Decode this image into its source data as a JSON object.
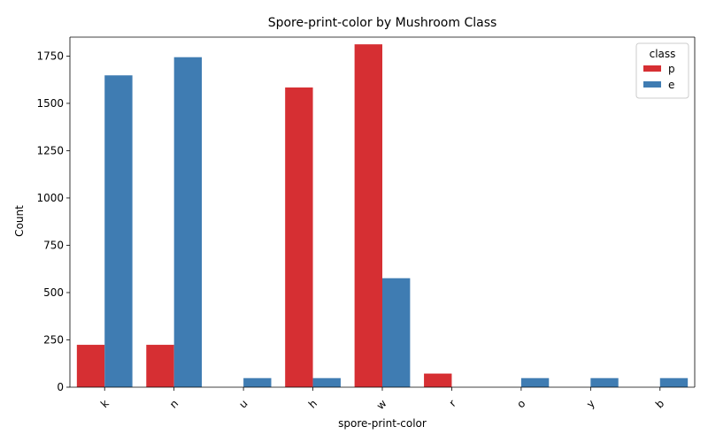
{
  "chart_data": {
    "type": "bar",
    "title": "Spore-print-color by Mushroom Class",
    "xlabel": "spore-print-color",
    "ylabel": "Count",
    "categories": [
      "k",
      "n",
      "u",
      "h",
      "w",
      "r",
      "o",
      "y",
      "b"
    ],
    "series": [
      {
        "name": "p",
        "color": "#d62f33",
        "values": [
          224,
          224,
          0,
          1584,
          1812,
          72,
          0,
          0,
          0
        ]
      },
      {
        "name": "e",
        "color": "#3f7cb2",
        "values": [
          1648,
          1744,
          48,
          48,
          576,
          0,
          48,
          48,
          48
        ]
      }
    ],
    "ylim": [
      0,
      1850
    ],
    "yticks": [
      0,
      250,
      500,
      750,
      1000,
      1250,
      1500,
      1750
    ],
    "legend": {
      "title": "class",
      "placement": "top-right"
    },
    "grid": false,
    "x_tick_rotation_deg": 45
  }
}
